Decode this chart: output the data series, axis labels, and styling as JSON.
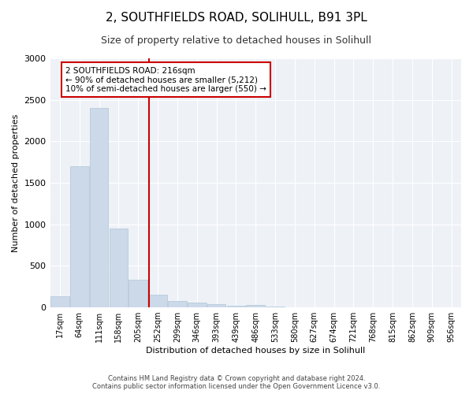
{
  "title": "2, SOUTHFIELDS ROAD, SOLIHULL, B91 3PL",
  "subtitle": "Size of property relative to detached houses in Solihull",
  "xlabel": "Distribution of detached houses by size in Solihull",
  "ylabel": "Number of detached properties",
  "bar_labels": [
    "17sqm",
    "64sqm",
    "111sqm",
    "158sqm",
    "205sqm",
    "252sqm",
    "299sqm",
    "346sqm",
    "393sqm",
    "439sqm",
    "486sqm",
    "533sqm",
    "580sqm",
    "627sqm",
    "674sqm",
    "721sqm",
    "768sqm",
    "815sqm",
    "862sqm",
    "909sqm",
    "956sqm"
  ],
  "bar_values": [
    130,
    1700,
    2400,
    950,
    330,
    150,
    80,
    60,
    40,
    20,
    30,
    10,
    5,
    5,
    5,
    5,
    5,
    5,
    5,
    5,
    5
  ],
  "bar_color": "#ccd9e8",
  "bar_edge_color": "#afc4d8",
  "vline_x": 4.55,
  "vline_color": "#cc0000",
  "annotation_text": "2 SOUTHFIELDS ROAD: 216sqm\n← 90% of detached houses are smaller (5,212)\n10% of semi-detached houses are larger (550) →",
  "annotation_box_color": "#ffffff",
  "annotation_box_edge": "#cc0000",
  "ylim": [
    0,
    3000
  ],
  "yticks": [
    0,
    500,
    1000,
    1500,
    2000,
    2500,
    3000
  ],
  "footer_text": "Contains HM Land Registry data © Crown copyright and database right 2024.\nContains public sector information licensed under the Open Government Licence v3.0.",
  "bg_color": "#ffffff",
  "plot_bg_color": "#eef2f7",
  "title_fontsize": 11,
  "subtitle_fontsize": 9,
  "tick_fontsize": 7,
  "ylabel_fontsize": 8,
  "xlabel_fontsize": 8
}
